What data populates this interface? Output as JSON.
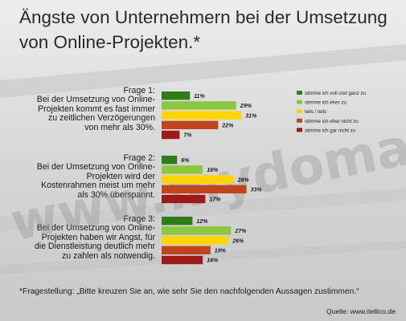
{
  "title": "Ängste von Unternehmern bei der Umsetzung von Online-Projekten.*",
  "watermark": "www.mydomain.com",
  "footnote": "*Fragestellung: „Bitte kreuzen Sie an, wie sehr Sie den nachfolgenden Aussagen zustimmen.“",
  "source": "Quelle: www.itellico.de",
  "colors": [
    "#2e7d1a",
    "#8dc63f",
    "#ffd500",
    "#c0441e",
    "#a01818"
  ],
  "chart_data": {
    "type": "bar",
    "orientation": "horizontal",
    "value_format": "percent",
    "legend_position": "right",
    "series_names": [
      "stimme ich voll und ganz zu",
      "stimme ich eher zu",
      "teils / teils",
      "stimme ich eher nicht zu",
      "stimme ich gar nicht zu"
    ],
    "questions": [
      {
        "heading": "Frage 1:",
        "text": "Bei der Umsetzung von Online-Projekten kommt es fast immer zu zeitlichen Verzögerungen von mehr als 30%.",
        "values": [
          11,
          29,
          31,
          22,
          7
        ]
      },
      {
        "heading": "Frage 2:",
        "text": "Bei der Umsetzung von Online-Projekten wird der Kostenrahmen meist um mehr als 30% überspannt.",
        "values": [
          6,
          16,
          28,
          33,
          17
        ]
      },
      {
        "heading": "Frage 3:",
        "text": "Bei der Umsetzung von Online-Projekten haben wir Angst, für die Dienstleistung deutlich mehr zu zahlen als notwendig.",
        "values": [
          12,
          27,
          26,
          19,
          16
        ]
      }
    ]
  }
}
